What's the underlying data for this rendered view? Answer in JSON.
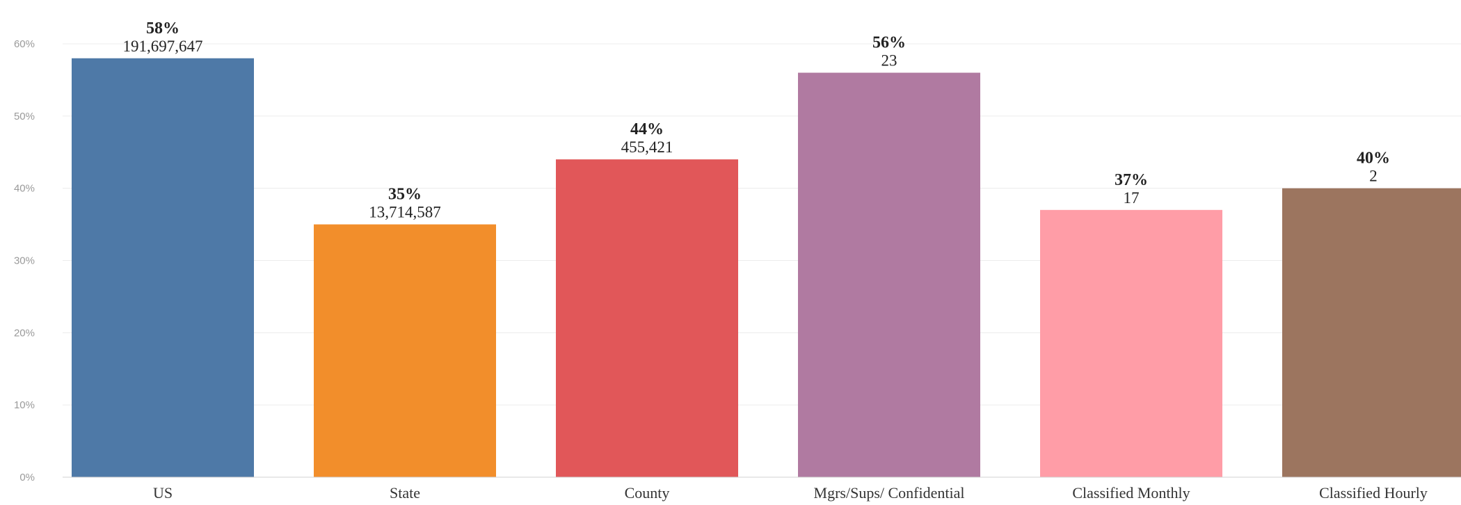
{
  "chart_data": {
    "type": "bar",
    "categories": [
      "US",
      "State",
      "County",
      "Mgrs/Sups/ Confidential",
      "Classified Monthly",
      "Classified Hourly"
    ],
    "values": [
      58,
      35,
      44,
      56,
      37,
      40
    ],
    "value_labels": [
      "58%",
      "35%",
      "44%",
      "56%",
      "37%",
      "40%"
    ],
    "counts": [
      "191,697,647",
      "13,714,587",
      "455,421",
      "23",
      "17",
      "2"
    ],
    "colors": [
      "#4e79a7",
      "#f28e2b",
      "#e15759",
      "#b07aa1",
      "#ff9da7",
      "#9c755f"
    ],
    "yticks": [
      "0%",
      "10%",
      "20%",
      "30%",
      "40%",
      "50%",
      "60%"
    ],
    "ylim": [
      0,
      60
    ],
    "grid": true,
    "title": "",
    "xlabel": "",
    "ylabel": ""
  }
}
